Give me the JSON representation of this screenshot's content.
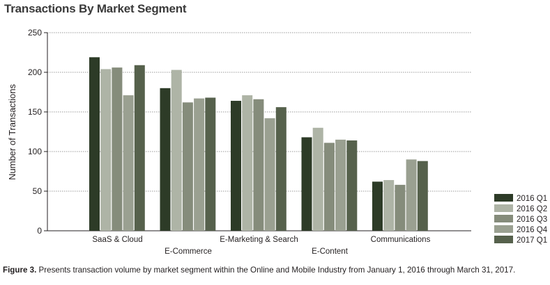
{
  "chart_data": {
    "type": "bar",
    "title": "Transactions By Market Segment",
    "ylabel": "Number of Transactions",
    "xlabel": "",
    "ylim": [
      0,
      250
    ],
    "yticks": [
      0,
      50,
      100,
      150,
      200,
      250
    ],
    "grid": true,
    "legend_position": "bottom-right",
    "categories": [
      "SaaS & Cloud",
      "E-Commerce",
      "E-Marketing & Search",
      "E-Content",
      "Communications"
    ],
    "series": [
      {
        "name": "2016 Q1",
        "color": "#2d3b27",
        "values": [
          219,
          180,
          164,
          118,
          62
        ]
      },
      {
        "name": "2016 Q2",
        "color": "#aeb4a6",
        "values": [
          204,
          203,
          171,
          130,
          64
        ]
      },
      {
        "name": "2016 Q3",
        "color": "#858c7b",
        "values": [
          206,
          162,
          166,
          111,
          58
        ]
      },
      {
        "name": "2016 Q4",
        "color": "#9aa091",
        "values": [
          171,
          167,
          142,
          115,
          90
        ]
      },
      {
        "name": "2017 Q1",
        "color": "#56614c",
        "values": [
          209,
          168,
          156,
          114,
          88
        ]
      }
    ]
  },
  "caption": {
    "label": "Figure 3.",
    "text": " Presents transaction volume by market segment within the Online and Mobile Industry from January 1, 2016 through March 31, 2017."
  }
}
